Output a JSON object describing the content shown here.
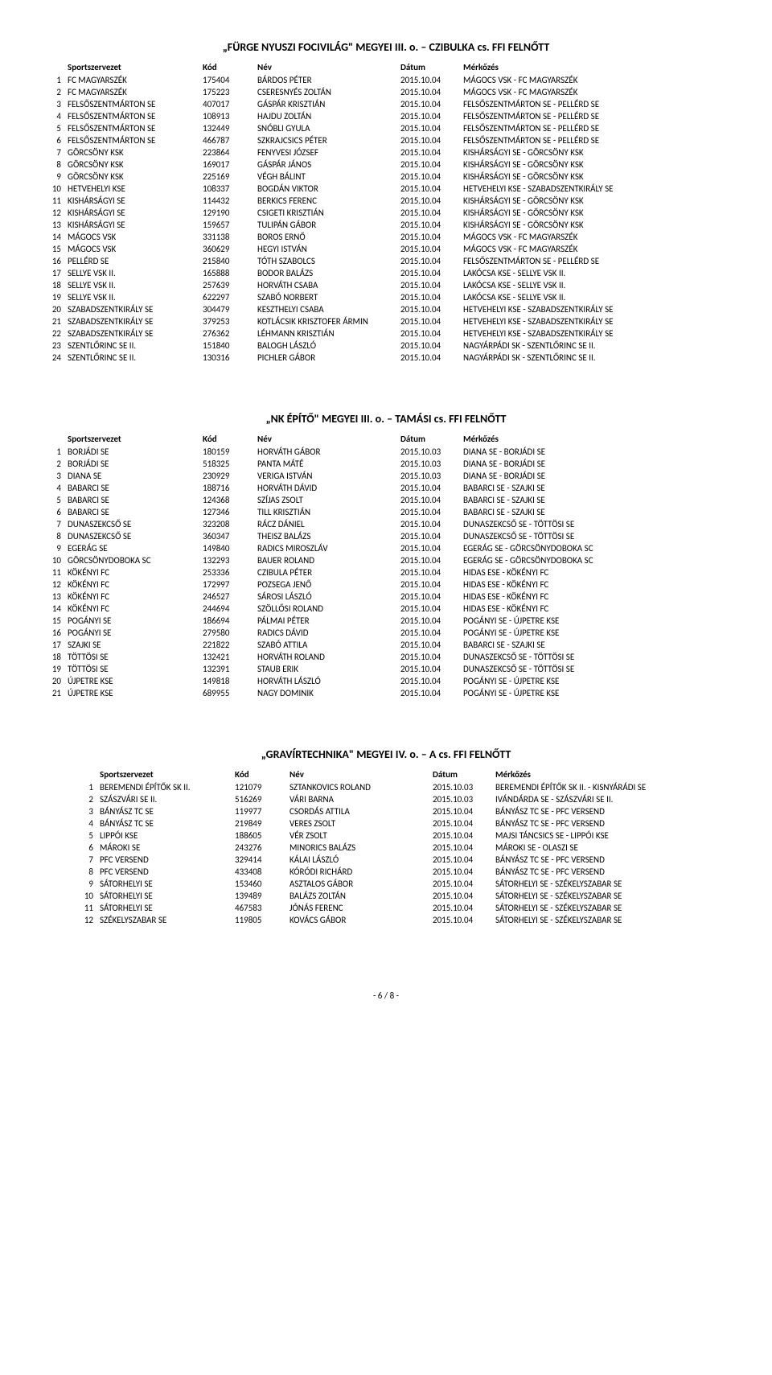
{
  "headers": {
    "org": "Sportszervezet",
    "code": "Kód",
    "name": "Név",
    "date": "Dátum",
    "match": "Mérkőzés"
  },
  "page_footer": "- 6 / 8 -",
  "sections": [
    {
      "title": "„FÜRGE NYUSZI FOCIVILÁG\" MEGYEI III. o. – CZIBULKA cs. FFI FELNŐTT",
      "indent": false,
      "rows": [
        {
          "idx": "1",
          "org": "FC MAGYARSZÉK",
          "code": "175404",
          "name": "BÁRDOS PÉTER",
          "date": "2015.10.04",
          "match": "MÁGOCS VSK - FC MAGYARSZÉK"
        },
        {
          "idx": "2",
          "org": "FC MAGYARSZÉK",
          "code": "175223",
          "name": "CSERESNYÉS ZOLTÁN",
          "date": "2015.10.04",
          "match": "MÁGOCS VSK - FC MAGYARSZÉK"
        },
        {
          "idx": "3",
          "org": "FELSŐSZENTMÁRTON SE",
          "code": "407017",
          "name": "GÁSPÁR KRISZTIÁN",
          "date": "2015.10.04",
          "match": "FELSŐSZENTMÁRTON SE - PELLÉRD SE"
        },
        {
          "idx": "4",
          "org": "FELSŐSZENTMÁRTON SE",
          "code": "108913",
          "name": "HAJDU ZOLTÁN",
          "date": "2015.10.04",
          "match": "FELSŐSZENTMÁRTON SE - PELLÉRD SE"
        },
        {
          "idx": "5",
          "org": "FELSŐSZENTMÁRTON SE",
          "code": "132449",
          "name": "SNÓBLI GYULA",
          "date": "2015.10.04",
          "match": "FELSŐSZENTMÁRTON SE - PELLÉRD SE"
        },
        {
          "idx": "6",
          "org": "FELSŐSZENTMÁRTON SE",
          "code": "466787",
          "name": "SZKRAJCSICS PÉTER",
          "date": "2015.10.04",
          "match": "FELSŐSZENTMÁRTON SE - PELLÉRD SE"
        },
        {
          "idx": "7",
          "org": "GÖRCSÖNY KSK",
          "code": "223864",
          "name": "FENYVESI JÓZSEF",
          "date": "2015.10.04",
          "match": "KISHÁRSÁGYI SE - GÖRCSÖNY KSK"
        },
        {
          "idx": "8",
          "org": "GÖRCSÖNY KSK",
          "code": "169017",
          "name": "GÁSPÁR JÁNOS",
          "date": "2015.10.04",
          "match": "KISHÁRSÁGYI SE - GÖRCSÖNY KSK"
        },
        {
          "idx": "9",
          "org": "GÖRCSÖNY KSK",
          "code": "225169",
          "name": "VÉGH BÁLINT",
          "date": "2015.10.04",
          "match": "KISHÁRSÁGYI SE - GÖRCSÖNY KSK"
        },
        {
          "idx": "10",
          "org": "HETVEHELYI KSE",
          "code": "108337",
          "name": "BOGDÁN VIKTOR",
          "date": "2015.10.04",
          "match": "HETVEHELYI KSE - SZABADSZENTKIRÁLY SE"
        },
        {
          "idx": "11",
          "org": "KISHÁRSÁGYI SE",
          "code": "114432",
          "name": "BERKICS FERENC",
          "date": "2015.10.04",
          "match": "KISHÁRSÁGYI SE - GÖRCSÖNY KSK"
        },
        {
          "idx": "12",
          "org": "KISHÁRSÁGYI SE",
          "code": "129190",
          "name": "CSIGETI KRISZTIÁN",
          "date": "2015.10.04",
          "match": "KISHÁRSÁGYI SE - GÖRCSÖNY KSK"
        },
        {
          "idx": "13",
          "org": "KISHÁRSÁGYI SE",
          "code": "159657",
          "name": "TULIPÁN GÁBOR",
          "date": "2015.10.04",
          "match": "KISHÁRSÁGYI SE - GÖRCSÖNY KSK"
        },
        {
          "idx": "14",
          "org": "MÁGOCS VSK",
          "code": "331138",
          "name": "BOROS ERNŐ",
          "date": "2015.10.04",
          "match": "MÁGOCS VSK - FC MAGYARSZÉK"
        },
        {
          "idx": "15",
          "org": "MÁGOCS VSK",
          "code": "360629",
          "name": "HEGYI ISTVÁN",
          "date": "2015.10.04",
          "match": "MÁGOCS VSK - FC MAGYARSZÉK"
        },
        {
          "idx": "16",
          "org": "PELLÉRD SE",
          "code": "215840",
          "name": "TÓTH SZABOLCS",
          "date": "2015.10.04",
          "match": "FELSŐSZENTMÁRTON SE - PELLÉRD SE"
        },
        {
          "idx": "17",
          "org": "SELLYE VSK II.",
          "code": "165888",
          "name": "BODOR BALÁZS",
          "date": "2015.10.04",
          "match": "LAKÓCSA KSE - SELLYE VSK II."
        },
        {
          "idx": "18",
          "org": "SELLYE VSK II.",
          "code": "257639",
          "name": "HORVÁTH CSABA",
          "date": "2015.10.04",
          "match": "LAKÓCSA KSE - SELLYE VSK II."
        },
        {
          "idx": "19",
          "org": "SELLYE VSK II.",
          "code": "622297",
          "name": "SZABÓ NORBERT",
          "date": "2015.10.04",
          "match": "LAKÓCSA KSE - SELLYE VSK II."
        },
        {
          "idx": "20",
          "org": "SZABADSZENTKIRÁLY SE",
          "code": "304479",
          "name": "KESZTHELYI CSABA",
          "date": "2015.10.04",
          "match": "HETVEHELYI KSE - SZABADSZENTKIRÁLY SE"
        },
        {
          "idx": "21",
          "org": "SZABADSZENTKIRÁLY SE",
          "code": "379253",
          "name": "KOTLÁCSIK KRISZTOFER ÁRMIN",
          "date": "2015.10.04",
          "match": "HETVEHELYI KSE - SZABADSZENTKIRÁLY SE"
        },
        {
          "idx": "22",
          "org": "SZABADSZENTKIRÁLY SE",
          "code": "276362",
          "name": "LÉHMANN KRISZTIÁN",
          "date": "2015.10.04",
          "match": "HETVEHELYI KSE - SZABADSZENTKIRÁLY SE"
        },
        {
          "idx": "23",
          "org": "SZENTLŐRINC SE II.",
          "code": "151840",
          "name": "BALOGH LÁSZLÓ",
          "date": "2015.10.04",
          "match": "NAGYÁRPÁDI SK - SZENTLŐRINC SE II."
        },
        {
          "idx": "24",
          "org": "SZENTLŐRINC SE II.",
          "code": "130316",
          "name": "PICHLER GÁBOR",
          "date": "2015.10.04",
          "match": "NAGYÁRPÁDI SK - SZENTLŐRINC SE II."
        }
      ]
    },
    {
      "title": "„NK ÉPÍTŐ\" MEGYEI III. o. – TAMÁSI cs. FFI FELNŐTT",
      "indent": false,
      "rows": [
        {
          "idx": "1",
          "org": "BORJÁDI SE",
          "code": "180159",
          "name": "HORVÁTH GÁBOR",
          "date": "2015.10.03",
          "match": "DIANA SE - BORJÁDI SE"
        },
        {
          "idx": "2",
          "org": "BORJÁDI SE",
          "code": "518325",
          "name": "PANTA MÁTÉ",
          "date": "2015.10.03",
          "match": "DIANA SE - BORJÁDI SE"
        },
        {
          "idx": "3",
          "org": "DIANA SE",
          "code": "230929",
          "name": "VERIGA ISTVÁN",
          "date": "2015.10.03",
          "match": "DIANA SE - BORJÁDI SE"
        },
        {
          "idx": "4",
          "org": "BABARCI SE",
          "code": "188716",
          "name": "HORVÁTH DÁVID",
          "date": "2015.10.04",
          "match": "BABARCI SE - SZAJKI SE"
        },
        {
          "idx": "5",
          "org": "BABARCI SE",
          "code": "124368",
          "name": "SZÍJAS ZSOLT",
          "date": "2015.10.04",
          "match": "BABARCI SE - SZAJKI SE"
        },
        {
          "idx": "6",
          "org": "BABARCI SE",
          "code": "127346",
          "name": "TILL KRISZTIÁN",
          "date": "2015.10.04",
          "match": "BABARCI SE - SZAJKI SE"
        },
        {
          "idx": "7",
          "org": "DUNASZEKCSŐ SE",
          "code": "323208",
          "name": "RÁCZ DÁNIEL",
          "date": "2015.10.04",
          "match": "DUNASZEKCSŐ SE - TÖTTÖSI SE"
        },
        {
          "idx": "8",
          "org": "DUNASZEKCSŐ SE",
          "code": "360347",
          "name": "THEISZ BALÁZS",
          "date": "2015.10.04",
          "match": "DUNASZEKCSŐ SE - TÖTTÖSI SE"
        },
        {
          "idx": "9",
          "org": "EGERÁG SE",
          "code": "149840",
          "name": "RADICS MIROSZLÁV",
          "date": "2015.10.04",
          "match": "EGERÁG SE - GÖRCSÖNYDOBOKA SC"
        },
        {
          "idx": "10",
          "org": "GÖRCSÖNYDOBOKA SC",
          "code": "132293",
          "name": "BAUER ROLAND",
          "date": "2015.10.04",
          "match": "EGERÁG SE - GÖRCSÖNYDOBOKA SC"
        },
        {
          "idx": "11",
          "org": "KÖKÉNYI FC",
          "code": "253336",
          "name": "CZIBULA PÉTER",
          "date": "2015.10.04",
          "match": "HIDAS ESE - KÖKÉNYI FC"
        },
        {
          "idx": "12",
          "org": "KÖKÉNYI FC",
          "code": "172997",
          "name": "POZSEGA JENŐ",
          "date": "2015.10.04",
          "match": "HIDAS ESE - KÖKÉNYI FC"
        },
        {
          "idx": "13",
          "org": "KÖKÉNYI FC",
          "code": "246527",
          "name": "SÁROSI LÁSZLÓ",
          "date": "2015.10.04",
          "match": "HIDAS ESE - KÖKÉNYI FC"
        },
        {
          "idx": "14",
          "org": "KÖKÉNYI FC",
          "code": "244694",
          "name": "SZÖLLŐSI ROLAND",
          "date": "2015.10.04",
          "match": "HIDAS ESE - KÖKÉNYI FC"
        },
        {
          "idx": "15",
          "org": "POGÁNYI SE",
          "code": "186694",
          "name": "PÁLMAI PÉTER",
          "date": "2015.10.04",
          "match": "POGÁNYI SE - ÚJPETRE KSE"
        },
        {
          "idx": "16",
          "org": "POGÁNYI SE",
          "code": "279580",
          "name": "RADICS DÁVID",
          "date": "2015.10.04",
          "match": "POGÁNYI SE - ÚJPETRE KSE"
        },
        {
          "idx": "17",
          "org": "SZAJKI SE",
          "code": "221822",
          "name": "SZABÓ ATTILA",
          "date": "2015.10.04",
          "match": "BABARCI SE - SZAJKI SE"
        },
        {
          "idx": "18",
          "org": "TÖTTÖSI SE",
          "code": "132421",
          "name": "HORVÁTH ROLAND",
          "date": "2015.10.04",
          "match": "DUNASZEKCSŐ SE - TÖTTÖSI SE"
        },
        {
          "idx": "19",
          "org": "TÖTTÖSI SE",
          "code": "132391",
          "name": "STAUB ERIK",
          "date": "2015.10.04",
          "match": "DUNASZEKCSŐ SE - TÖTTÖSI SE"
        },
        {
          "idx": "20",
          "org": "ÚJPETRE KSE",
          "code": "149818",
          "name": "HORVÁTH LÁSZLÓ",
          "date": "2015.10.04",
          "match": "POGÁNYI SE - ÚJPETRE KSE"
        },
        {
          "idx": "21",
          "org": "ÚJPETRE KSE",
          "code": "689955",
          "name": "NAGY DOMINIK",
          "date": "2015.10.04",
          "match": "POGÁNYI SE - ÚJPETRE KSE"
        }
      ]
    },
    {
      "title": "„GRAVÍRTECHNIKA\" MEGYEI IV. o. – A cs. FFI FELNŐTT",
      "indent": true,
      "rows": [
        {
          "idx": "1",
          "org": "BEREMENDI ÉPÍTŐK SK II.",
          "code": "121079",
          "name": "SZTANKOVICS ROLAND",
          "date": "2015.10.03",
          "match": "BEREMENDI ÉPÍTŐK SK II. - KISNYÁRÁDI SE"
        },
        {
          "idx": "2",
          "org": "SZÁSZVÁRI SE II.",
          "code": "516269",
          "name": "VÁRI BARNA",
          "date": "2015.10.03",
          "match": "IVÁNDÁRDA SE - SZÁSZVÁRI SE II."
        },
        {
          "idx": "3",
          "org": "BÁNYÁSZ TC SE",
          "code": "119977",
          "name": "CSORDÁS ATTILA",
          "date": "2015.10.04",
          "match": "BÁNYÁSZ TC SE - PFC VERSEND"
        },
        {
          "idx": "4",
          "org": "BÁNYÁSZ TC SE",
          "code": "219849",
          "name": "VERES ZSOLT",
          "date": "2015.10.04",
          "match": "BÁNYÁSZ TC SE - PFC VERSEND"
        },
        {
          "idx": "5",
          "org": "LIPPÓI KSE",
          "code": "188605",
          "name": "VÉR ZSOLT",
          "date": "2015.10.04",
          "match": "MAJSI TÁNCSICS SE - LIPPÓI KSE"
        },
        {
          "idx": "6",
          "org": "MÁROKI SE",
          "code": "243276",
          "name": "MINORICS BALÁZS",
          "date": "2015.10.04",
          "match": "MÁROKI SE - OLASZI SE"
        },
        {
          "idx": "7",
          "org": "PFC VERSEND",
          "code": "329414",
          "name": "KÁLAI LÁSZLÓ",
          "date": "2015.10.04",
          "match": "BÁNYÁSZ TC SE - PFC VERSEND"
        },
        {
          "idx": "8",
          "org": "PFC VERSEND",
          "code": "433408",
          "name": "KÓRÓDI RICHÁRD",
          "date": "2015.10.04",
          "match": "BÁNYÁSZ TC SE - PFC VERSEND"
        },
        {
          "idx": "9",
          "org": "SÁTORHELYI SE",
          "code": "153460",
          "name": "ASZTALOS GÁBOR",
          "date": "2015.10.04",
          "match": "SÁTORHELYI SE - SZÉKELYSZABAR SE"
        },
        {
          "idx": "10",
          "org": "SÁTORHELYI SE",
          "code": "139489",
          "name": "BALÁZS ZOLTÁN",
          "date": "2015.10.04",
          "match": "SÁTORHELYI SE - SZÉKELYSZABAR SE"
        },
        {
          "idx": "11",
          "org": "SÁTORHELYI SE",
          "code": "467583",
          "name": "JÓNÁS FERENC",
          "date": "2015.10.04",
          "match": "SÁTORHELYI SE - SZÉKELYSZABAR SE"
        },
        {
          "idx": "12",
          "org": "SZÉKELYSZABAR SE",
          "code": "119805",
          "name": "KOVÁCS GÁBOR",
          "date": "2015.10.04",
          "match": "SÁTORHELYI SE - SZÉKELYSZABAR SE"
        }
      ]
    }
  ]
}
